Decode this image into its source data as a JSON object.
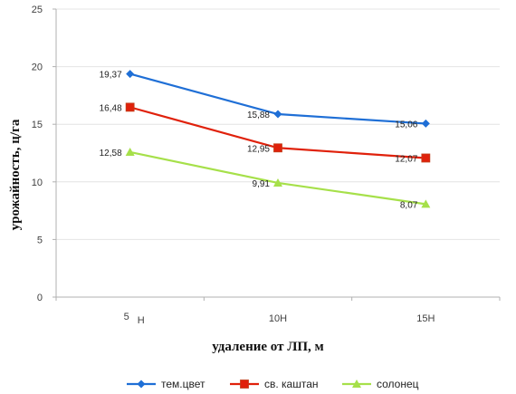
{
  "chart_data": {
    "type": "line",
    "categories": [
      "5 Н",
      "10Н",
      "15Н"
    ],
    "category_labels": [
      {
        "main": "5",
        "suffix": "Н"
      },
      {
        "main": "10Н",
        "suffix": ""
      },
      {
        "main": "15Н",
        "suffix": ""
      }
    ],
    "series": [
      {
        "name": "тем.цвет",
        "values": [
          19.37,
          15.88,
          15.06
        ],
        "labels": [
          "19,37",
          "15,88",
          "15,06"
        ],
        "color": "#1f6fd6",
        "marker": "diamond"
      },
      {
        "name": "св. каштан",
        "values": [
          16.48,
          12.95,
          12.07
        ],
        "labels": [
          "16,48",
          "12,95",
          "12,07"
        ],
        "color": "#e0210b",
        "marker": "square"
      },
      {
        "name": "солонец",
        "values": [
          12.58,
          9.91,
          8.07
        ],
        "labels": [
          "12,58",
          "9,91",
          "8,07"
        ],
        "color": "#a6e04a",
        "marker": "triangle"
      }
    ],
    "ylabel": "урожайность, ц/га",
    "xlabel": "удаление от ЛП, м",
    "ylim": [
      0,
      25
    ],
    "yticks": [
      0,
      5,
      10,
      15,
      20,
      25
    ],
    "grid": true,
    "legend_position": "bottom"
  }
}
